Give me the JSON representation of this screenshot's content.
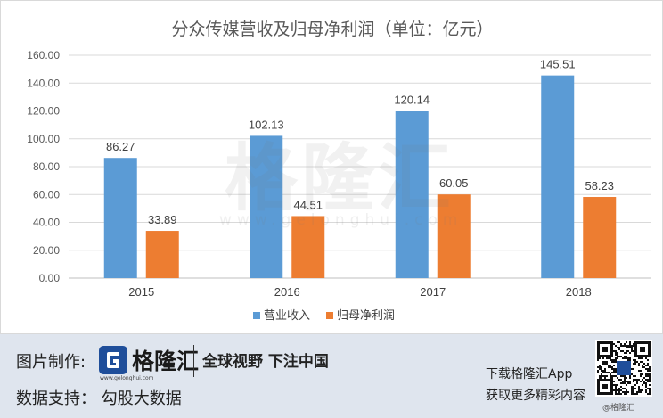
{
  "chart_data": {
    "type": "bar",
    "title": "分众传媒营收及归母净利润（单位：亿元）",
    "categories": [
      "2015",
      "2016",
      "2017",
      "2018"
    ],
    "series": [
      {
        "name": "营业收入",
        "values": [
          86.27,
          102.13,
          120.14,
          145.51
        ],
        "color": "#5b9bd5"
      },
      {
        "name": "归母净利润",
        "values": [
          33.89,
          44.51,
          60.05,
          58.23
        ],
        "color": "#ed7d31"
      }
    ],
    "data_labels": [
      [
        "86.27",
        "102.13",
        "120.14",
        "145.51"
      ],
      [
        "33.89",
        "44.51",
        "60.05",
        "58.23"
      ]
    ],
    "ylim": [
      0,
      160
    ],
    "yticks": [
      "0.00",
      "20.00",
      "40.00",
      "60.00",
      "80.00",
      "100.00",
      "120.00",
      "140.00",
      "160.00"
    ],
    "grid": true,
    "legend_position": "bottom"
  },
  "watermark": {
    "main": "格隆汇",
    "sub": "www.gelonghui.com"
  },
  "footer": {
    "made_by_label": "图片制作:",
    "brand_name": "格隆汇",
    "brand_url": "www.gelonghui.com",
    "slogan": "全球视野 下注中国",
    "data_source": "数据支持： 勾股大数据",
    "download_text": "下载格隆汇App",
    "more_text": "获取更多精彩内容",
    "qr_caption": "@格隆汇"
  }
}
